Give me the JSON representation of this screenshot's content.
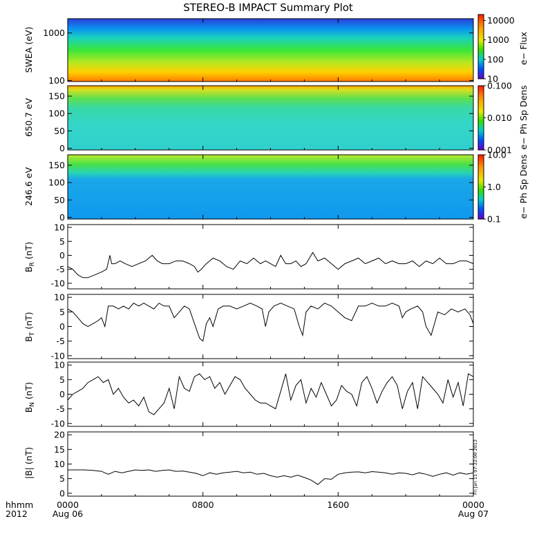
{
  "title": "STEREO-B IMPACT Summary Plot",
  "stamp": "Fri Jan 11 07:22:00 2013",
  "time_axis": {
    "row1_label": "hhmm",
    "row2_label": "2012",
    "ticks": [
      {
        "hour": 0,
        "label": "0000",
        "sub": "Aug 06"
      },
      {
        "hour": 8,
        "label": "0800",
        "sub": ""
      },
      {
        "hour": 16,
        "label": "1600",
        "sub": ""
      },
      {
        "hour": 24,
        "label": "0000",
        "sub": "Aug 07"
      }
    ]
  },
  "chart_data": [
    {
      "type": "heatmap",
      "id": "swea",
      "ylabel": "SWEA (eV)",
      "yscale": "log",
      "ylim": [
        95,
        2000
      ],
      "yticks": [
        {
          "v": 100,
          "t": "100"
        },
        {
          "v": 1000,
          "t": "1000"
        }
      ],
      "xlim": [
        0,
        24
      ],
      "colorbar": {
        "label": "e− Flux",
        "scale": "log",
        "range": [
          10,
          20000
        ],
        "ticks": [
          {
            "v": 10,
            "t": "10"
          },
          {
            "v": 100,
            "t": "100"
          },
          {
            "v": 1000,
            "t": "1000"
          },
          {
            "v": 10000,
            "t": "10000"
          }
        ]
      }
    },
    {
      "type": "heatmap",
      "id": "pad650",
      "ylabel": "650.7 eV",
      "ylim": [
        -5,
        180
      ],
      "yticks": [
        {
          "v": 0,
          "t": "0"
        },
        {
          "v": 50,
          "t": "50"
        },
        {
          "v": 100,
          "t": "100"
        },
        {
          "v": 150,
          "t": "150"
        }
      ],
      "xlim": [
        0,
        24
      ],
      "colorbar": {
        "label": "e− Ph Sp Dens",
        "scale": "log",
        "range": [
          0.001,
          0.1
        ],
        "ticks": [
          {
            "v": 0.001,
            "t": "0.001"
          },
          {
            "v": 0.01,
            "t": "0.010"
          },
          {
            "v": 0.1,
            "t": "0.100"
          }
        ]
      }
    },
    {
      "type": "heatmap",
      "id": "pad246",
      "ylabel": "246.6 eV",
      "ylim": [
        -5,
        180
      ],
      "yticks": [
        {
          "v": 0,
          "t": "0"
        },
        {
          "v": 50,
          "t": "50"
        },
        {
          "v": 100,
          "t": "100"
        },
        {
          "v": 150,
          "t": "150"
        }
      ],
      "xlim": [
        0,
        24
      ],
      "colorbar": {
        "label": "e− Ph Sp Dens",
        "scale": "log",
        "range": [
          0.1,
          10
        ],
        "ticks": [
          {
            "v": 0.1,
            "t": "0.1"
          },
          {
            "v": 1,
            "t": "1.0"
          },
          {
            "v": 10,
            "t": "10.0"
          }
        ]
      }
    },
    {
      "type": "line",
      "id": "br",
      "ylabel": "B",
      "ysub": "R",
      "yunit": " (nT)",
      "ylim": [
        -12,
        11
      ],
      "yticks": [
        -10,
        -5,
        0,
        5,
        10
      ],
      "xlim": [
        0,
        24
      ],
      "x": [
        0,
        0.3,
        0.6,
        0.9,
        1.2,
        1.6,
        2.0,
        2.3,
        2.5,
        2.6,
        2.8,
        3.1,
        3.4,
        3.8,
        4.2,
        4.6,
        5.0,
        5.3,
        5.6,
        6.0,
        6.4,
        6.8,
        7.2,
        7.5,
        7.7,
        7.9,
        8.2,
        8.6,
        9.0,
        9.4,
        9.8,
        10.2,
        10.6,
        11.0,
        11.4,
        11.7,
        12.0,
        12.3,
        12.6,
        12.9,
        13.2,
        13.5,
        13.8,
        14.1,
        14.3,
        14.5,
        14.8,
        15.2,
        15.6,
        16.0,
        16.4,
        16.8,
        17.2,
        17.6,
        18.0,
        18.4,
        18.8,
        19.2,
        19.6,
        20.0,
        20.4,
        20.8,
        21.2,
        21.6,
        22.0,
        22.4,
        22.8,
        23.2,
        23.6,
        24.0
      ],
      "y": [
        -4,
        -5,
        -7,
        -8,
        -8,
        -7,
        -6,
        -5,
        0,
        -3,
        -3,
        -2,
        -3,
        -4,
        -3,
        -2,
        0,
        -2,
        -3,
        -3,
        -2,
        -2,
        -3,
        -4,
        -6,
        -5,
        -3,
        -1,
        -2,
        -4,
        -5,
        -2,
        -3,
        -1,
        -3,
        -2,
        -3,
        -4,
        0,
        -3,
        -3,
        -2,
        -4,
        -3,
        -1,
        1,
        -2,
        -1,
        -3,
        -5,
        -3,
        -2,
        -1,
        -3,
        -2,
        -1,
        -3,
        -2,
        -3,
        -3,
        -2,
        -4,
        -2,
        -3,
        -1,
        -3,
        -3,
        -2,
        -2,
        -3
      ]
    },
    {
      "type": "line",
      "id": "bt",
      "ylabel": "B",
      "ysub": "T",
      "yunit": " (nT)",
      "ylim": [
        -11,
        11
      ],
      "yticks": [
        -10,
        -5,
        0,
        5,
        10
      ],
      "xlim": [
        0,
        24
      ],
      "x": [
        0,
        0.3,
        0.6,
        0.9,
        1.2,
        1.5,
        1.8,
        2.0,
        2.2,
        2.4,
        2.7,
        3.0,
        3.3,
        3.6,
        3.9,
        4.2,
        4.5,
        4.8,
        5.1,
        5.4,
        5.7,
        6.0,
        6.3,
        6.6,
        6.9,
        7.2,
        7.5,
        7.8,
        8.0,
        8.2,
        8.4,
        8.6,
        8.9,
        9.2,
        9.6,
        10.0,
        10.4,
        10.8,
        11.2,
        11.5,
        11.7,
        11.9,
        12.2,
        12.6,
        13.0,
        13.4,
        13.7,
        13.9,
        14.1,
        14.4,
        14.8,
        15.2,
        15.6,
        16.0,
        16.4,
        16.8,
        17.2,
        17.6,
        18.0,
        18.4,
        18.8,
        19.2,
        19.6,
        19.8,
        20.0,
        20.3,
        20.7,
        21.0,
        21.2,
        21.5,
        21.9,
        22.3,
        22.7,
        23.1,
        23.5,
        23.8,
        24.0
      ],
      "y": [
        6,
        5,
        3,
        1,
        0,
        1,
        2,
        3,
        0,
        7,
        7,
        6,
        7,
        6,
        8,
        7,
        8,
        7,
        6,
        8,
        7,
        7,
        3,
        5,
        7,
        6,
        1,
        -4,
        -5,
        1,
        3,
        0,
        6,
        7,
        7,
        6,
        7,
        8,
        7,
        6,
        0,
        5,
        7,
        8,
        7,
        6,
        0,
        -3,
        5,
        7,
        6,
        8,
        7,
        5,
        3,
        2,
        7,
        7,
        8,
        7,
        7,
        8,
        7,
        3,
        5,
        6,
        7,
        5,
        0,
        -3,
        5,
        4,
        6,
        5,
        6,
        4,
        1
      ]
    },
    {
      "type": "line",
      "id": "bn",
      "ylabel": "B",
      "ysub": "N",
      "yunit": " (nT)",
      "ylim": [
        -11,
        11
      ],
      "yticks": [
        -10,
        -5,
        0,
        5,
        10
      ],
      "xlim": [
        0,
        24
      ],
      "x": [
        0,
        0.3,
        0.6,
        0.9,
        1.2,
        1.5,
        1.8,
        2.1,
        2.4,
        2.7,
        3.0,
        3.3,
        3.6,
        3.9,
        4.2,
        4.5,
        4.8,
        5.1,
        5.4,
        5.7,
        6.0,
        6.3,
        6.6,
        6.9,
        7.2,
        7.5,
        7.8,
        8.1,
        8.4,
        8.7,
        9.0,
        9.3,
        9.6,
        9.9,
        10.2,
        10.5,
        10.8,
        11.1,
        11.4,
        11.7,
        12.0,
        12.3,
        12.6,
        12.9,
        13.2,
        13.5,
        13.8,
        14.1,
        14.4,
        14.7,
        15.0,
        15.3,
        15.6,
        15.9,
        16.2,
        16.5,
        16.8,
        17.1,
        17.4,
        17.7,
        18.0,
        18.3,
        18.6,
        18.9,
        19.2,
        19.5,
        19.8,
        20.1,
        20.4,
        20.7,
        21.0,
        21.3,
        21.6,
        21.9,
        22.2,
        22.5,
        22.8,
        23.1,
        23.4,
        23.7,
        24.0
      ],
      "y": [
        -2,
        0,
        1,
        2,
        4,
        5,
        6,
        4,
        5,
        0,
        2,
        -1,
        -3,
        -2,
        -4,
        -1,
        -6,
        -7,
        -5,
        -3,
        2,
        -5,
        6,
        2,
        1,
        6,
        7,
        5,
        6,
        2,
        4,
        0,
        3,
        6,
        5,
        2,
        0,
        -2,
        -3,
        -3,
        -4,
        -5,
        1,
        7,
        -2,
        3,
        5,
        -3,
        2,
        -1,
        4,
        0,
        -4,
        -2,
        3,
        1,
        0,
        -4,
        4,
        6,
        2,
        -3,
        1,
        4,
        6,
        3,
        -5,
        1,
        4,
        -5,
        6,
        4,
        2,
        0,
        -3,
        5,
        -1,
        4,
        -4,
        7,
        6
      ]
    },
    {
      "type": "line",
      "id": "bmag",
      "ylabel": "|B| (nT)",
      "ylim": [
        -1,
        21
      ],
      "yticks": [
        0,
        5,
        10,
        15,
        20
      ],
      "xlim": [
        0,
        24
      ],
      "x": [
        0,
        0.5,
        1.0,
        1.5,
        2.0,
        2.4,
        2.8,
        3.2,
        3.6,
        4.0,
        4.4,
        4.8,
        5.2,
        5.6,
        6.0,
        6.4,
        6.8,
        7.2,
        7.6,
        8.0,
        8.4,
        8.8,
        9.2,
        9.6,
        10.0,
        10.4,
        10.8,
        11.2,
        11.6,
        12.0,
        12.4,
        12.8,
        13.2,
        13.6,
        14.0,
        14.4,
        14.8,
        15.2,
        15.6,
        16.0,
        16.4,
        16.8,
        17.2,
        17.6,
        18.0,
        18.4,
        18.8,
        19.2,
        19.6,
        20.0,
        20.4,
        20.8,
        21.2,
        21.6,
        22.0,
        22.4,
        22.8,
        23.2,
        23.6,
        24.0
      ],
      "y": [
        8,
        8,
        8,
        7.8,
        7.5,
        6.5,
        7.5,
        7,
        7.5,
        8,
        7.8,
        8,
        7.5,
        7.8,
        8,
        7.5,
        7.6,
        7.2,
        6.8,
        6,
        7,
        6.5,
        7,
        7.2,
        7.5,
        7,
        7.2,
        6.5,
        6.8,
        6,
        5.5,
        6,
        5.5,
        6.2,
        5.4,
        4.5,
        3,
        5,
        4.8,
        6.5,
        7,
        7.2,
        7.3,
        7,
        7.4,
        7.2,
        7,
        6.5,
        7,
        6.8,
        6.3,
        7,
        6.5,
        5.8,
        6.5,
        7,
        6.2,
        7,
        6.5,
        7
      ]
    }
  ]
}
